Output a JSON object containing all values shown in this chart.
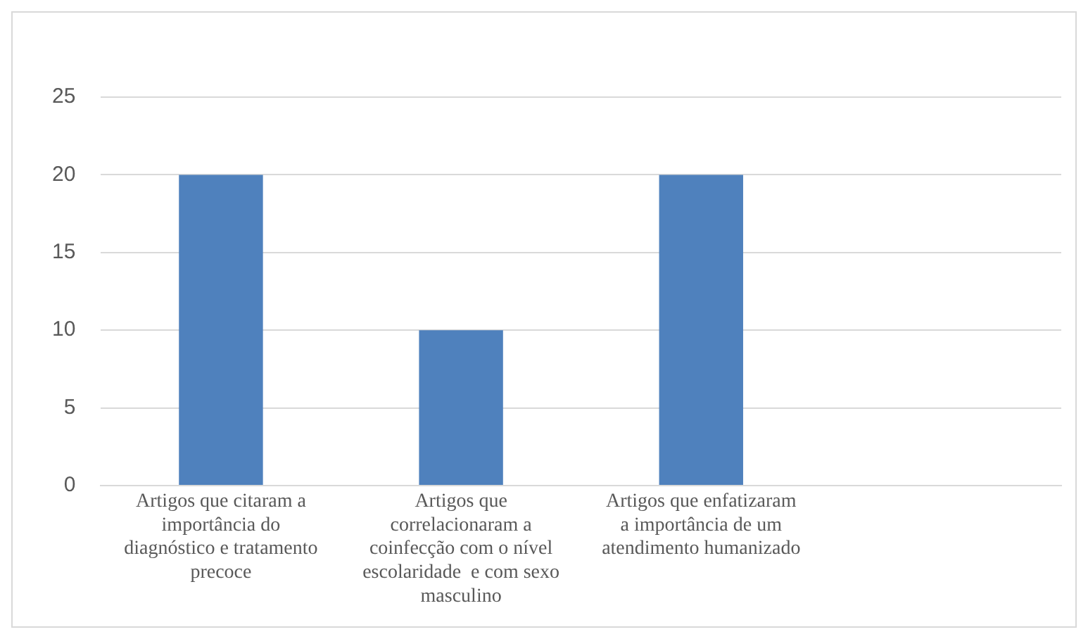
{
  "chart_data": {
    "type": "bar",
    "categories": [
      "Artigos que citaram a importância do diagnóstico e tratamento precoce",
      "Artigos que correlacionaram a coinfecção com o nível escolaridade  e com sexo masculino",
      "Artigos que enfatizaram a importância de um atendimento humanizado",
      null
    ],
    "values": [
      20,
      10,
      20,
      null
    ],
    "color": "#4f81bd",
    "ylim": [
      0,
      25
    ],
    "yticks": [
      0,
      5,
      10,
      15,
      20,
      25
    ],
    "grid": "y",
    "legend": false
  }
}
